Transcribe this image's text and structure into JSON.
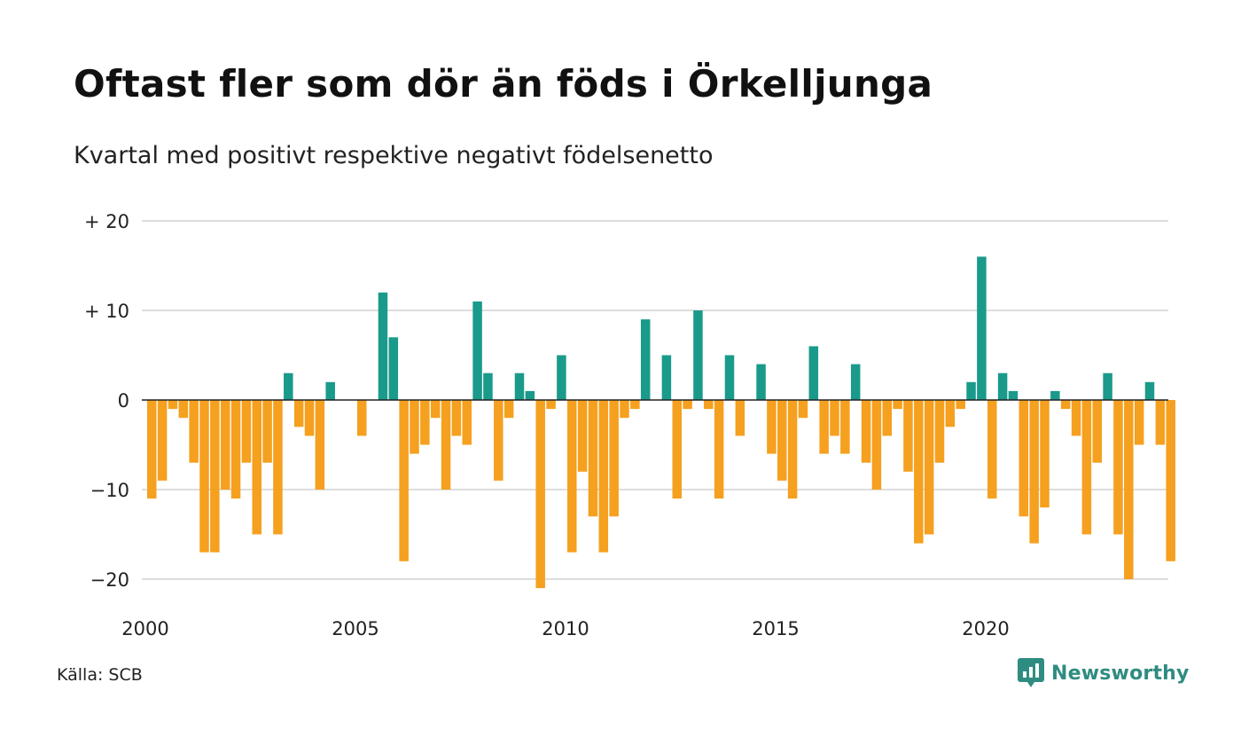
{
  "header": {
    "title": "Oftast fler som dör än föds i Örkelljunga",
    "subtitle": "Kvartal med positivt respektive negativt födelsenetto"
  },
  "footer": {
    "source": "Källa: SCB",
    "brand": "Newsworthy"
  },
  "colors": {
    "positive": "#1a9a8a",
    "negative": "#f5a01f",
    "grid": "#dddddd",
    "brand": "#2f8c80"
  },
  "chart_data": {
    "type": "bar",
    "title": "Oftast fler som dör än föds i Örkelljunga",
    "subtitle": "Kvartal med positivt respektive negativt födelsenetto",
    "x_start": "2000 Q1",
    "x_ticks": [
      {
        "year": 2000,
        "label": "2000"
      },
      {
        "year": 2005,
        "label": "2005"
      },
      {
        "year": 2010,
        "label": "2010"
      },
      {
        "year": 2015,
        "label": "2015"
      },
      {
        "year": 2020,
        "label": "2020"
      }
    ],
    "y_ticks": [
      {
        "value": 20,
        "label": "+ 20"
      },
      {
        "value": 10,
        "label": "+ 10"
      },
      {
        "value": 0,
        "label": "0"
      },
      {
        "value": -10,
        "label": "−10"
      },
      {
        "value": -20,
        "label": "−20"
      }
    ],
    "ylim": [
      -22,
      20
    ],
    "grid": true,
    "values": [
      -11,
      -9,
      -1,
      -2,
      -7,
      -17,
      -17,
      -10,
      -11,
      -7,
      -15,
      -7,
      -15,
      3,
      -3,
      -4,
      -10,
      2,
      0,
      0,
      -4,
      0,
      12,
      7,
      -18,
      -6,
      -5,
      -2,
      -10,
      -4,
      -5,
      11,
      3,
      -9,
      -2,
      3,
      1,
      -21,
      -1,
      5,
      -17,
      -8,
      -13,
      -17,
      -13,
      -2,
      -1,
      9,
      0,
      5,
      -11,
      -1,
      10,
      -1,
      -11,
      5,
      -4,
      0,
      4,
      -6,
      -9,
      -11,
      -2,
      6,
      -6,
      -4,
      -6,
      4,
      -7,
      -10,
      -4,
      -1,
      -8,
      -16,
      -15,
      -7,
      -3,
      -1,
      2,
      16,
      -11,
      3,
      1,
      -13,
      -16,
      -12,
      1,
      -1,
      -4,
      -15,
      -7,
      3,
      -15,
      -20,
      -5,
      2,
      -5,
      -18
    ]
  }
}
